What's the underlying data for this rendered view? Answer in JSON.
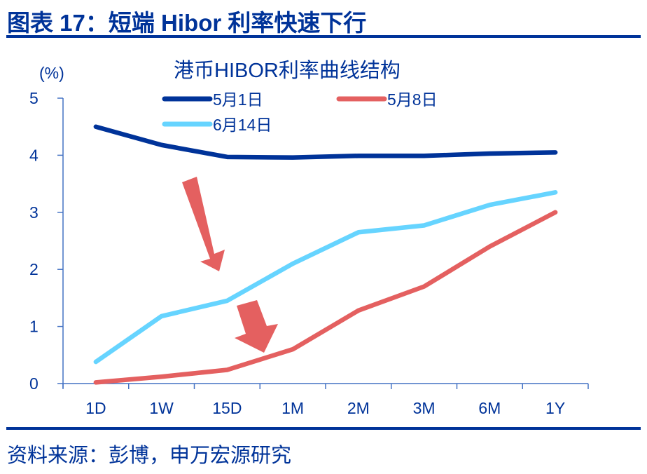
{
  "figure": {
    "title": "图表 17：短端 Hibor 利率快速下行",
    "source": "资料来源：彭博，申万宏源研究"
  },
  "colors": {
    "brand_blue": "#003399",
    "axis": "#4472C4",
    "series_may1": "#003399",
    "series_may8": "#E46060",
    "series_jun14": "#66D4FF",
    "arrow": "#E46060"
  },
  "chart_data": {
    "type": "line",
    "title": "港币HIBOR利率曲线结构",
    "xlabel": "",
    "ylabel": "(%)",
    "ylim": [
      0,
      5
    ],
    "yticks": [
      0,
      1,
      2,
      3,
      4,
      5
    ],
    "grid": false,
    "legend_position": "top",
    "categories": [
      "1D",
      "1W",
      "15D",
      "1M",
      "2M",
      "3M",
      "6M",
      "1Y"
    ],
    "series": [
      {
        "name": "5月1日",
        "values": [
          4.5,
          4.18,
          3.97,
          3.96,
          3.99,
          3.99,
          4.03,
          4.05
        ]
      },
      {
        "name": "5月8日",
        "values": [
          0.02,
          0.12,
          0.24,
          0.6,
          1.28,
          1.7,
          2.4,
          3.0
        ]
      },
      {
        "name": "6月14日",
        "values": [
          0.38,
          1.18,
          1.45,
          2.1,
          2.65,
          2.77,
          3.13,
          3.35
        ]
      }
    ],
    "annotations": [
      {
        "type": "arrow",
        "direction": "down",
        "description": "从5月1日曲线指向6月14日曲线"
      },
      {
        "type": "arrow",
        "direction": "down",
        "description": "从6月14日曲线指向5月8日曲线"
      }
    ]
  }
}
